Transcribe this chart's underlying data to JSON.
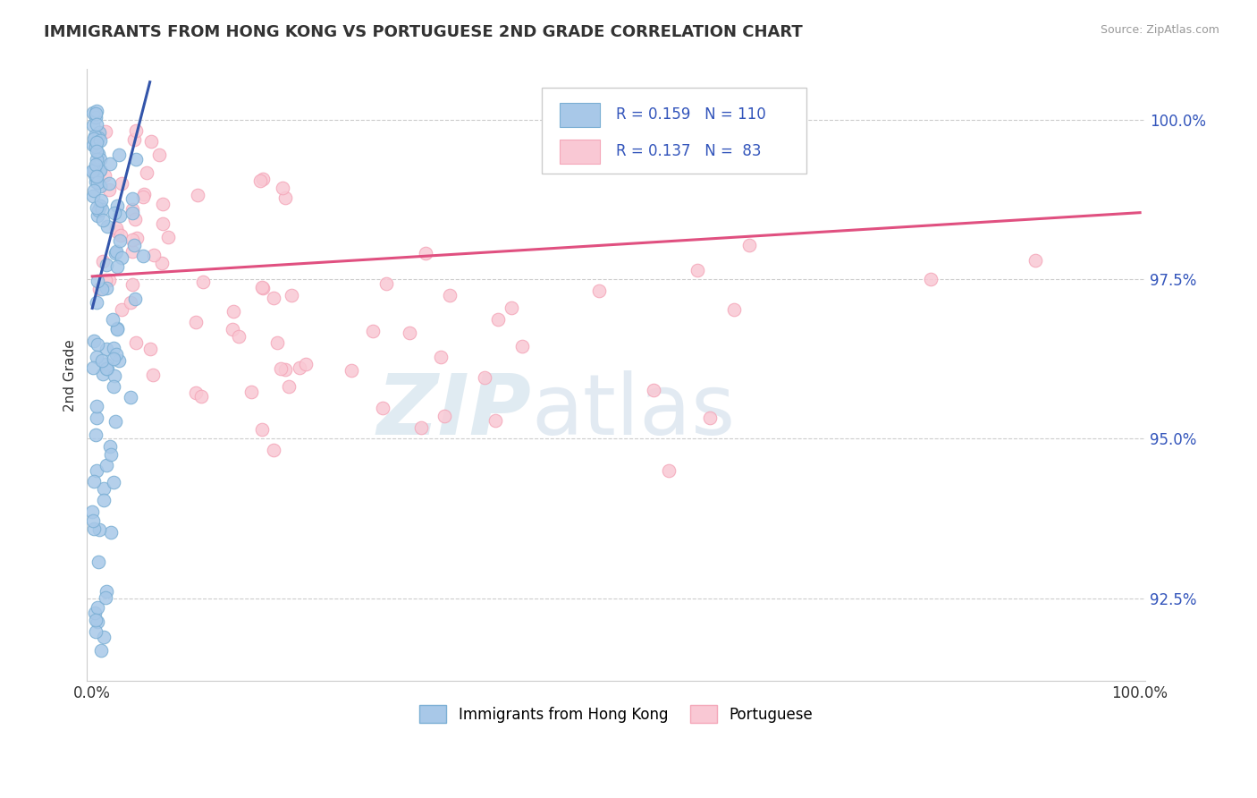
{
  "title": "IMMIGRANTS FROM HONG KONG VS PORTUGUESE 2ND GRADE CORRELATION CHART",
  "source": "Source: ZipAtlas.com",
  "ylabel": "2nd Grade",
  "xlim": [
    -0.5,
    100.5
  ],
  "ylim": [
    91.2,
    100.8
  ],
  "yticks_right": [
    92.5,
    95.0,
    97.5,
    100.0
  ],
  "ytick_labels_right": [
    "92.5%",
    "95.0%",
    "97.5%",
    "100.0%"
  ],
  "xtick_positions": [
    0,
    100
  ],
  "xtick_labels": [
    "0.0%",
    "100.0%"
  ],
  "legend_R1": "0.159",
  "legend_N1": "110",
  "legend_R2": "0.137",
  "legend_N2": " 83",
  "blue_color": "#7BAFD4",
  "pink_color": "#F4A7B9",
  "blue_fill": "#A8C8E8",
  "pink_fill": "#F9C8D4",
  "blue_line_color": "#3355AA",
  "pink_line_color": "#E05080",
  "text_blue": "#3355BB",
  "watermark_zip": "ZIP",
  "watermark_atlas": "atlas",
  "blue_trend_x": [
    0,
    5.5
  ],
  "blue_trend_y": [
    97.05,
    100.6
  ],
  "pink_trend_x": [
    0,
    100
  ],
  "pink_trend_y": [
    97.55,
    98.55
  ]
}
